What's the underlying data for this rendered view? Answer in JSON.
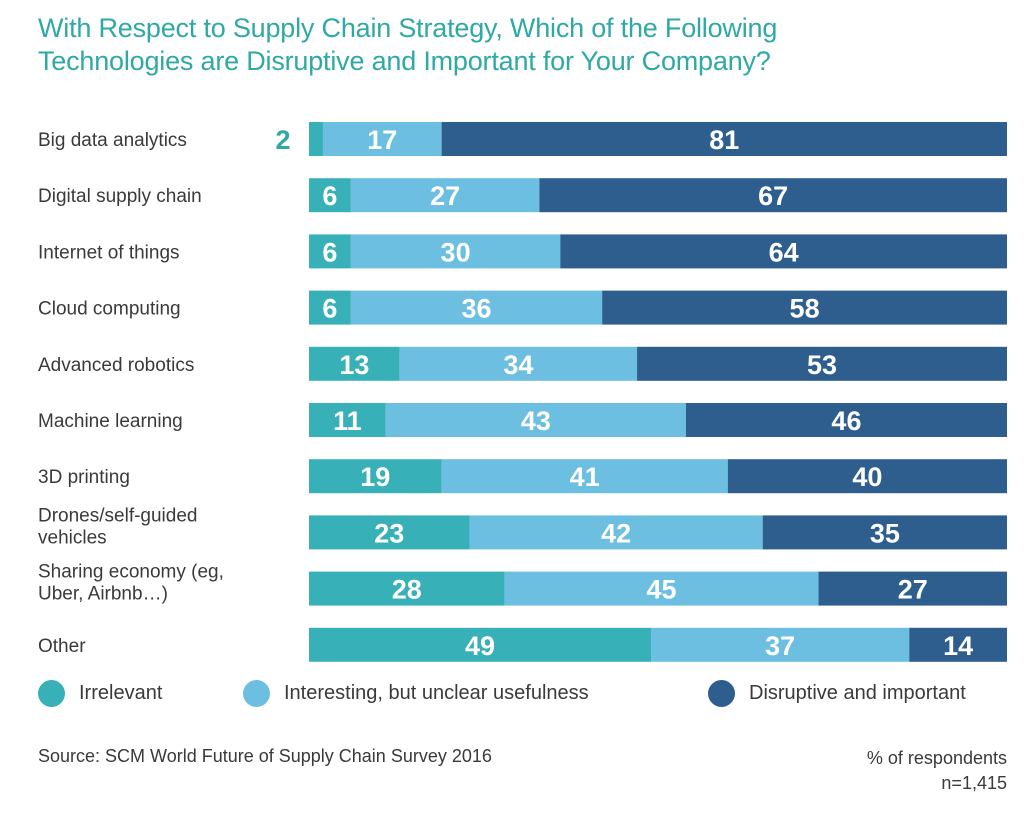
{
  "title_lines": [
    "With Respect to Supply Chain Strategy, Which of the Following",
    "Technologies are Disruptive and Important for Your Company?"
  ],
  "colors": {
    "irrelevant": "#38b0b7",
    "interesting": "#6cbfe0",
    "disruptive": "#2d5e8e",
    "title": "#2fa9a5",
    "text": "#3a3a3a"
  },
  "legend": [
    {
      "label": "Irrelevant",
      "color_key": "irrelevant"
    },
    {
      "label": "Interesting, but unclear usefulness",
      "color_key": "interesting"
    },
    {
      "label": "Disruptive and important",
      "color_key": "disruptive"
    }
  ],
  "footer": {
    "source": "Source: SCM World Future of Supply Chain Survey 2016",
    "unit": "% of respondents",
    "sample": "n=1,415"
  },
  "chart_data": {
    "type": "bar",
    "orientation": "horizontal-stacked-100",
    "title": "With Respect to Supply Chain Strategy, Which of the Following Technologies are Disruptive and Important for Your Company?",
    "xlabel": "% of respondents",
    "ylabel": "",
    "xlim": [
      0,
      100
    ],
    "grid": false,
    "legend_position": "bottom",
    "categories": [
      [
        "Big data analytics"
      ],
      [
        "Digital supply chain"
      ],
      [
        "Internet of things"
      ],
      [
        "Cloud computing"
      ],
      [
        "Advanced robotics"
      ],
      [
        "Machine learning"
      ],
      [
        "3D printing"
      ],
      [
        "Drones/self-guided",
        "vehicles"
      ],
      [
        "Sharing economy (eg,",
        "Uber, Airbnb…)"
      ],
      [
        "Other"
      ]
    ],
    "series": [
      {
        "name": "Irrelevant",
        "color": "#38b0b7",
        "values": [
          2,
          6,
          6,
          6,
          13,
          11,
          19,
          23,
          28,
          49
        ]
      },
      {
        "name": "Interesting, but unclear usefulness",
        "color": "#6cbfe0",
        "values": [
          17,
          27,
          30,
          36,
          34,
          43,
          41,
          42,
          45,
          37
        ]
      },
      {
        "name": "Disruptive and important",
        "color": "#2d5e8e",
        "values": [
          81,
          67,
          64,
          58,
          53,
          46,
          40,
          35,
          27,
          14
        ]
      }
    ],
    "annotations": [
      {
        "category_index": 0,
        "series_index": 0,
        "note": "value 2 shown outside bar to the left"
      }
    ]
  }
}
